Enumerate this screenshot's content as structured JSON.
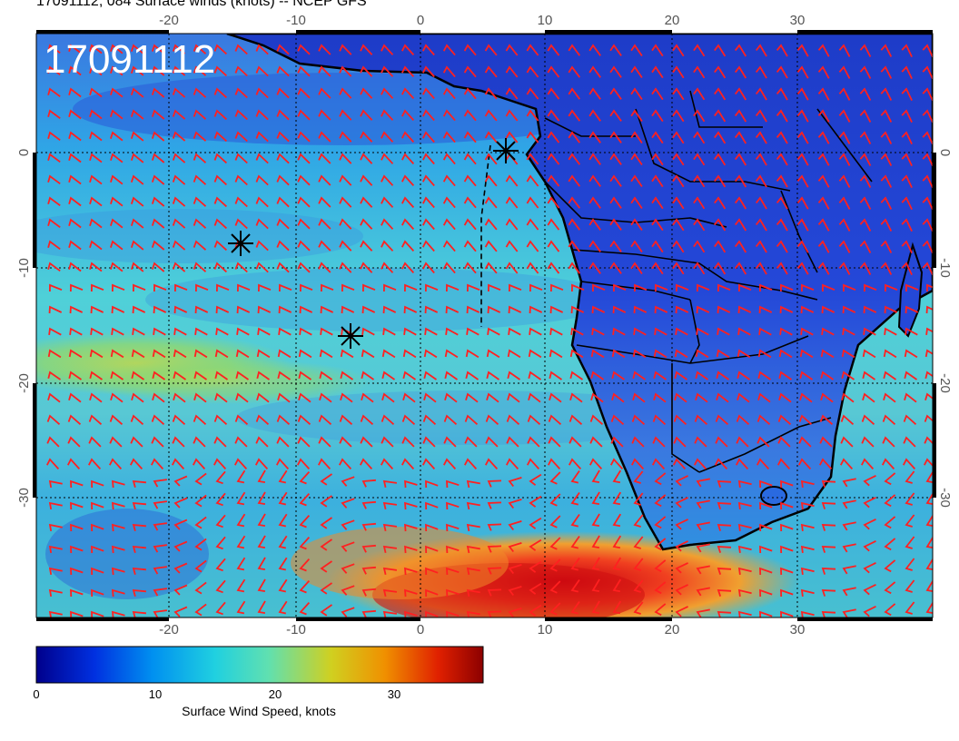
{
  "header": {
    "title": "17091112, 084 Surface winds (knots) -- NCEP GFS",
    "stamp": "17091112"
  },
  "map": {
    "lon_ticks": [
      "-20",
      "-10",
      "0",
      "10",
      "20",
      "30"
    ],
    "lat_ticks": [
      "0",
      "-10",
      "-20",
      "-30"
    ],
    "marker": "asterisk",
    "colors": {
      "ocean_base": "#37b8d8",
      "land_base": "#2c4bd6",
      "high_wind": "#e0302a",
      "barb": "#ff2020",
      "border": "#000000"
    }
  },
  "colorbar": {
    "labels": [
      "0",
      "10",
      "20",
      "30"
    ],
    "title": "Surface Wind Speed, knots",
    "range": [
      0,
      38
    ],
    "stops": [
      "#00008c",
      "#0030e0",
      "#0090f0",
      "#20d0e0",
      "#60e0b0",
      "#d0d020",
      "#f09000",
      "#e02000",
      "#8c0000"
    ]
  }
}
